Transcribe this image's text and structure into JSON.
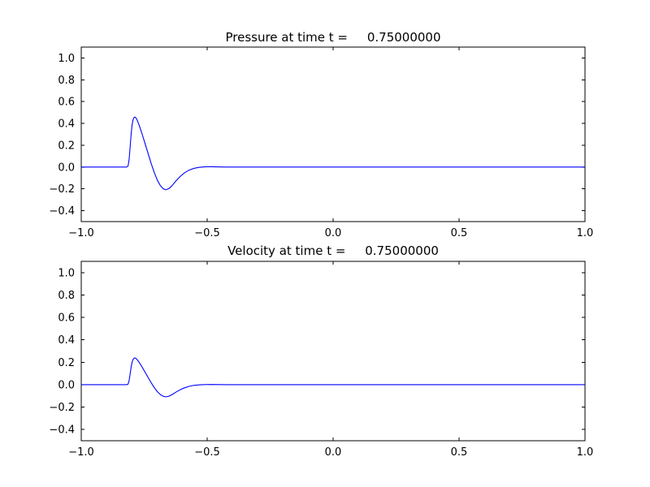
{
  "figure": {
    "kind": "matplotlib-style figure, 2 stacked subplots",
    "background": "#ffffff",
    "axes_color": "#000000"
  },
  "chart_data": [
    {
      "type": "line",
      "title": "Pressure at time t =     0.75000000",
      "xlabel": "",
      "ylabel": "",
      "xlim": [
        -1.0,
        1.0
      ],
      "ylim": [
        -0.5,
        1.1
      ],
      "grid": false,
      "legend": "none",
      "xticks": [
        -1.0,
        -0.5,
        0.0,
        0.5,
        1.0
      ],
      "xtick_labels": [
        "−1.0",
        "−0.5",
        "0.0",
        "0.5",
        "1.0"
      ],
      "yticks": [
        -0.4,
        -0.2,
        0.0,
        0.2,
        0.4,
        0.6,
        0.8,
        1.0
      ],
      "ytick_labels": [
        "−0.4",
        "−0.2",
        "0.0",
        "0.2",
        "0.4",
        "0.6",
        "0.8",
        "1.0"
      ],
      "line_color": "#0000ff",
      "series": [
        {
          "name": "pressure",
          "x": [
            -1.0,
            -0.9,
            -0.85,
            -0.82,
            -0.814,
            -0.81,
            -0.806,
            -0.802,
            -0.798,
            -0.794,
            -0.79,
            -0.786,
            -0.782,
            -0.776,
            -0.768,
            -0.758,
            -0.746,
            -0.734,
            -0.722,
            -0.71,
            -0.698,
            -0.686,
            -0.674,
            -0.664,
            -0.652,
            -0.64,
            -0.625,
            -0.608,
            -0.59,
            -0.572,
            -0.553,
            -0.533,
            -0.51,
            -0.48,
            -0.45,
            -0.42,
            -0.4,
            -0.3,
            -0.2,
            -0.1,
            0.0,
            0.1,
            0.2,
            0.3,
            0.4,
            0.5,
            0.6,
            0.7,
            0.8,
            0.9,
            1.0
          ],
          "y": [
            0,
            0,
            0,
            0,
            0.01,
            0.07,
            0.18,
            0.3,
            0.39,
            0.435,
            0.455,
            0.458,
            0.448,
            0.42,
            0.37,
            0.3,
            0.21,
            0.12,
            0.03,
            -0.05,
            -0.12,
            -0.17,
            -0.2,
            -0.208,
            -0.198,
            -0.172,
            -0.13,
            -0.088,
            -0.053,
            -0.028,
            -0.012,
            -0.003,
            0.002,
            0.003,
            0.001,
            0,
            0,
            0,
            0,
            0,
            0,
            0,
            0,
            0,
            0,
            0,
            0,
            0,
            0,
            0,
            0
          ]
        }
      ]
    },
    {
      "type": "line",
      "title": "Velocity at time t =     0.75000000",
      "xlabel": "",
      "ylabel": "",
      "xlim": [
        -1.0,
        1.0
      ],
      "ylim": [
        -0.5,
        1.1
      ],
      "grid": false,
      "legend": "none",
      "xticks": [
        -1.0,
        -0.5,
        0.0,
        0.5,
        1.0
      ],
      "xtick_labels": [
        "−1.0",
        "−0.5",
        "0.0",
        "0.5",
        "1.0"
      ],
      "yticks": [
        -0.4,
        -0.2,
        0.0,
        0.2,
        0.4,
        0.6,
        0.8,
        1.0
      ],
      "ytick_labels": [
        "−0.4",
        "−0.2",
        "0.0",
        "0.2",
        "0.4",
        "0.6",
        "0.8",
        "1.0"
      ],
      "line_color": "#0000ff",
      "series": [
        {
          "name": "velocity",
          "x": [
            -1.0,
            -0.9,
            -0.85,
            -0.82,
            -0.814,
            -0.81,
            -0.806,
            -0.802,
            -0.798,
            -0.794,
            -0.79,
            -0.786,
            -0.782,
            -0.776,
            -0.768,
            -0.758,
            -0.746,
            -0.734,
            -0.722,
            -0.71,
            -0.698,
            -0.686,
            -0.674,
            -0.664,
            -0.652,
            -0.64,
            -0.625,
            -0.608,
            -0.59,
            -0.572,
            -0.553,
            -0.533,
            -0.51,
            -0.48,
            -0.45,
            -0.42,
            -0.4,
            -0.3,
            -0.2,
            -0.1,
            0.0,
            0.1,
            0.2,
            0.3,
            0.4,
            0.5,
            0.6,
            0.7,
            0.8,
            0.9,
            1.0
          ],
          "y": [
            0,
            0,
            0,
            0,
            0.005,
            0.036,
            0.094,
            0.156,
            0.203,
            0.226,
            0.237,
            0.238,
            0.233,
            0.218,
            0.192,
            0.156,
            0.109,
            0.062,
            0.016,
            -0.026,
            -0.062,
            -0.088,
            -0.104,
            -0.108,
            -0.103,
            -0.089,
            -0.068,
            -0.046,
            -0.028,
            -0.015,
            -0.006,
            -0.002,
            0.001,
            0.002,
            0.001,
            0,
            0,
            0,
            0,
            0,
            0,
            0,
            0,
            0,
            0,
            0,
            0,
            0,
            0,
            0,
            0
          ]
        }
      ]
    }
  ]
}
